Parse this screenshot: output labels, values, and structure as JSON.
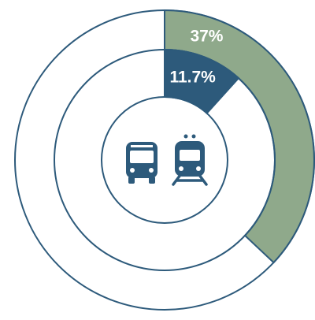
{
  "chart_data": {
    "type": "donut",
    "series": [
      {
        "color": "#8fa98b",
        "values": [
          37
        ],
        "value_labels": [
          "37%"
        ]
      },
      {
        "color": "#2d5a7b",
        "values": [
          11.7
        ],
        "value_labels": [
          "11.7%"
        ]
      }
    ],
    "ylim": [
      0,
      100
    ]
  }
}
